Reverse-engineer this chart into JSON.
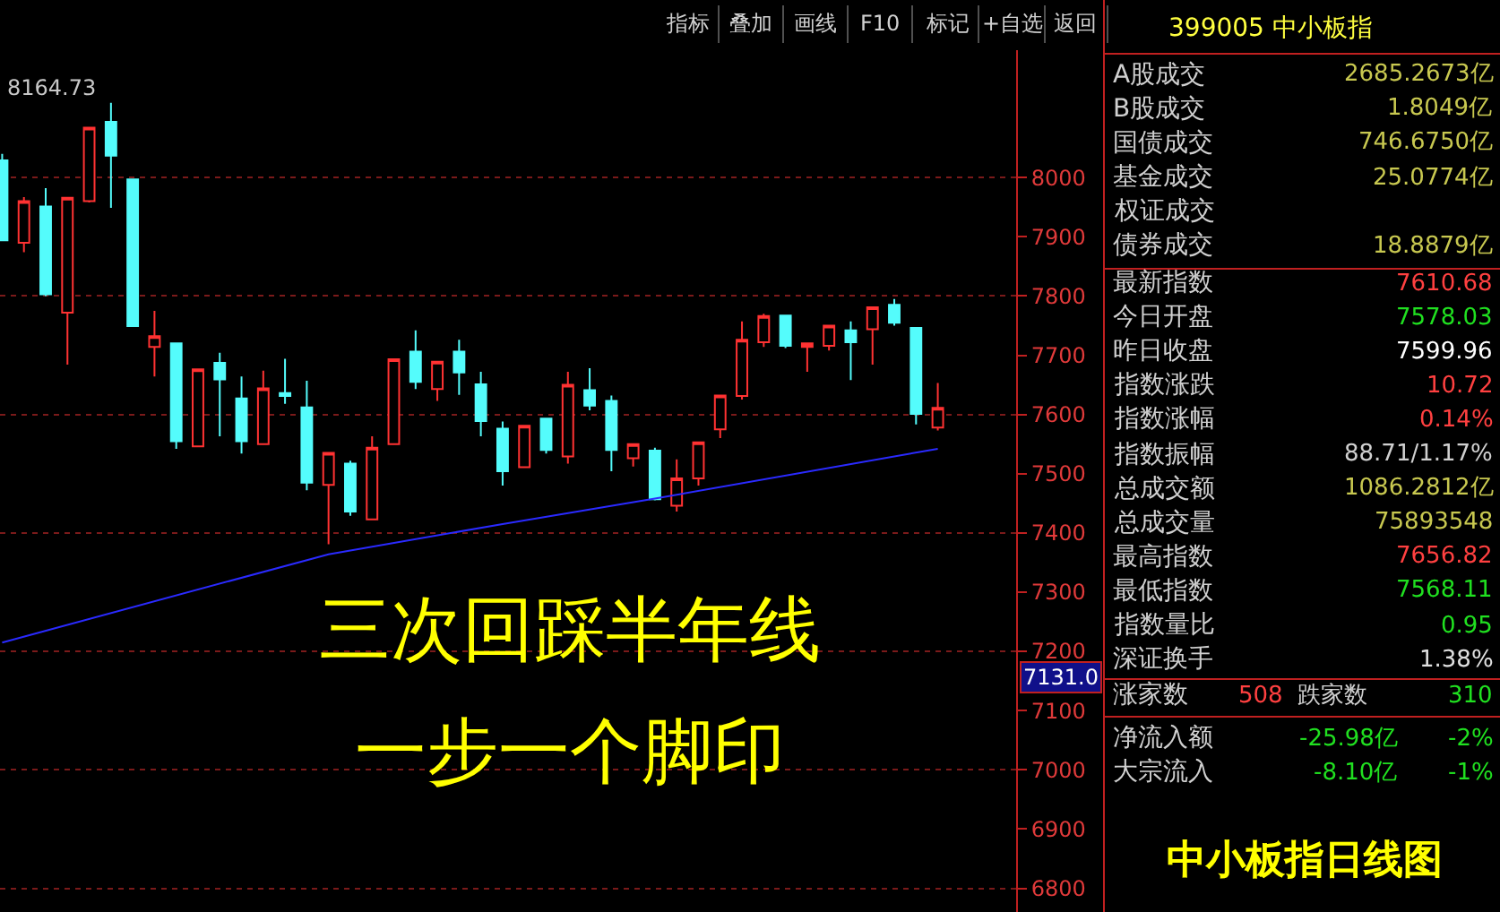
{
  "chart_data": [
    {
      "type": "candlestick",
      "categories": [
        null,
        null,
        null,
        null,
        null,
        null,
        null,
        null,
        null,
        null,
        null,
        null,
        null,
        null,
        null,
        null,
        null,
        null,
        null,
        null,
        null,
        null,
        null,
        null,
        null,
        null,
        null,
        null,
        null,
        null,
        null,
        null,
        null,
        null,
        null,
        null,
        null,
        null,
        null,
        null,
        null,
        null,
        null,
        null
      ],
      "ohlc": [
        [
          8029,
          8040,
          7894,
          7894
        ],
        [
          7890,
          7967,
          7874,
          7960
        ],
        [
          7951,
          7982,
          7800,
          7803
        ],
        [
          7772,
          7966,
          7684,
          7966
        ],
        [
          7960,
          8084,
          7958,
          8084
        ],
        [
          8094,
          8126,
          7949,
          8037
        ],
        [
          7997,
          7997,
          7749,
          7749
        ],
        [
          7714,
          7775,
          7664,
          7732
        ],
        [
          7720,
          7720,
          7542,
          7555
        ],
        [
          7546,
          7676,
          7546,
          7676
        ],
        [
          7687,
          7704,
          7563,
          7659
        ],
        [
          7627,
          7664,
          7534,
          7555
        ],
        [
          7550,
          7674,
          7550,
          7644
        ],
        [
          7636,
          7694,
          7618,
          7631
        ],
        [
          7612,
          7657,
          7472,
          7485
        ],
        [
          7481,
          7535,
          7381,
          7535
        ],
        [
          7517,
          7522,
          7429,
          7436
        ],
        [
          7423,
          7563,
          7423,
          7544
        ],
        [
          7550,
          7693,
          7550,
          7693
        ],
        [
          7706,
          7742,
          7643,
          7655
        ],
        [
          7643,
          7689,
          7623,
          7689
        ],
        [
          7706,
          7726,
          7633,
          7671
        ],
        [
          7651,
          7672,
          7563,
          7589
        ],
        [
          7576,
          7588,
          7480,
          7504
        ],
        [
          7511,
          7581,
          7511,
          7581
        ],
        [
          7593,
          7593,
          7534,
          7540
        ],
        [
          7529,
          7672,
          7517,
          7650
        ],
        [
          7641,
          7678,
          7607,
          7615
        ],
        [
          7623,
          7632,
          7504,
          7540
        ],
        [
          7526,
          7550,
          7512,
          7550
        ],
        [
          7539,
          7544,
          7455,
          7457
        ],
        [
          7446,
          7524,
          7436,
          7492
        ],
        [
          7492,
          7553,
          7480,
          7553
        ],
        [
          7575,
          7632,
          7560,
          7632
        ],
        [
          7631,
          7757,
          7625,
          7726
        ],
        [
          7722,
          7770,
          7714,
          7766
        ],
        [
          7767,
          7767,
          7712,
          7716
        ],
        [
          7714,
          7720,
          7672,
          7720
        ],
        [
          7716,
          7750,
          7708,
          7750
        ],
        [
          7742,
          7757,
          7658,
          7722
        ],
        [
          7744,
          7781,
          7684,
          7781
        ],
        [
          7785,
          7795,
          7750,
          7755
        ],
        [
          7746,
          7746,
          7583,
          7601
        ],
        [
          7578,
          7653,
          7573,
          7611
        ]
      ],
      "colors": [
        "#54fcfc",
        "#ff3232",
        "#54fcfc",
        "#ff3232",
        "#ff3232",
        "#54fcfc",
        "#54fcfc",
        "#ff3232",
        "#54fcfc",
        "#ff3232",
        "#54fcfc",
        "#54fcfc",
        "#ff3232",
        "#54fcfc",
        "#54fcfc",
        "#ff3232",
        "#54fcfc",
        "#ff3232",
        "#ff3232",
        "#54fcfc",
        "#ff3232",
        "#54fcfc",
        "#54fcfc",
        "#54fcfc",
        "#ff3232",
        "#54fcfc",
        "#ff3232",
        "#54fcfc",
        "#54fcfc",
        "#ff3232",
        "#54fcfc",
        "#ff3232",
        "#ff3232",
        "#ff3232",
        "#ff3232",
        "#ff3232",
        "#54fcfc",
        "#ff3232",
        "#ff3232",
        "#54fcfc",
        "#ff3232",
        "#54fcfc",
        "#54fcfc",
        "#ff3232"
      ],
      "series": [
        {
          "type": "line",
          "color": "#2a2aff",
          "values": [
            7215,
            null,
            null,
            null,
            null,
            null,
            null,
            null,
            null,
            null,
            null,
            null,
            null,
            null,
            null,
            7364,
            null,
            null,
            null,
            null,
            null,
            null,
            null,
            7415,
            null,
            null,
            null,
            null,
            null,
            null,
            7458,
            null,
            null,
            null,
            null,
            null,
            null,
            null,
            null,
            null,
            null,
            null,
            null,
            7542
          ]
        }
      ],
      "ylim": [
        6760,
        8215
      ],
      "yticks": [
        6800,
        6900,
        7000,
        7100,
        7200,
        7300,
        7400,
        7500,
        7600,
        7700,
        7800,
        7900,
        8000
      ],
      "grid": "y",
      "legend": false,
      "annotations": [
        "8164.73",
        "7131.0",
        "三次回踩半年线",
        "一步一个脚印"
      ]
    },
    {
      "type": "other",
      "annotations": [
        "指标",
        "叠加",
        "画线",
        "F10",
        "标记",
        "+自选",
        "返回"
      ]
    },
    {
      "type": "other",
      "title": "399005 中小板指",
      "subtitle": "中小板指日线图",
      "annotations": [
        "A股成交 2685.2673亿",
        "B股成交 1.8049亿",
        "国债成交 746.6750亿",
        "基金成交 25.0774亿",
        "权证成交",
        "债券成交 18.8879亿",
        "最新指数 7610.68",
        "今日开盘 7578.03",
        "昨日收盘 7599.96",
        "指数涨跌 10.72",
        "指数涨幅 0.14%",
        "指数振幅 88.71/1.17%",
        "总成交额 1086.2812亿",
        "总成交量 75893548",
        "最高指数 7656.82",
        "最低指数 7568.11",
        "指数量比 0.95",
        "深证换手 1.38%",
        "涨家数 508 跌家数 310",
        "净流入额 -25.98亿 -2%",
        "大宗流入 -8.10亿 -1%"
      ]
    }
  ]
}
